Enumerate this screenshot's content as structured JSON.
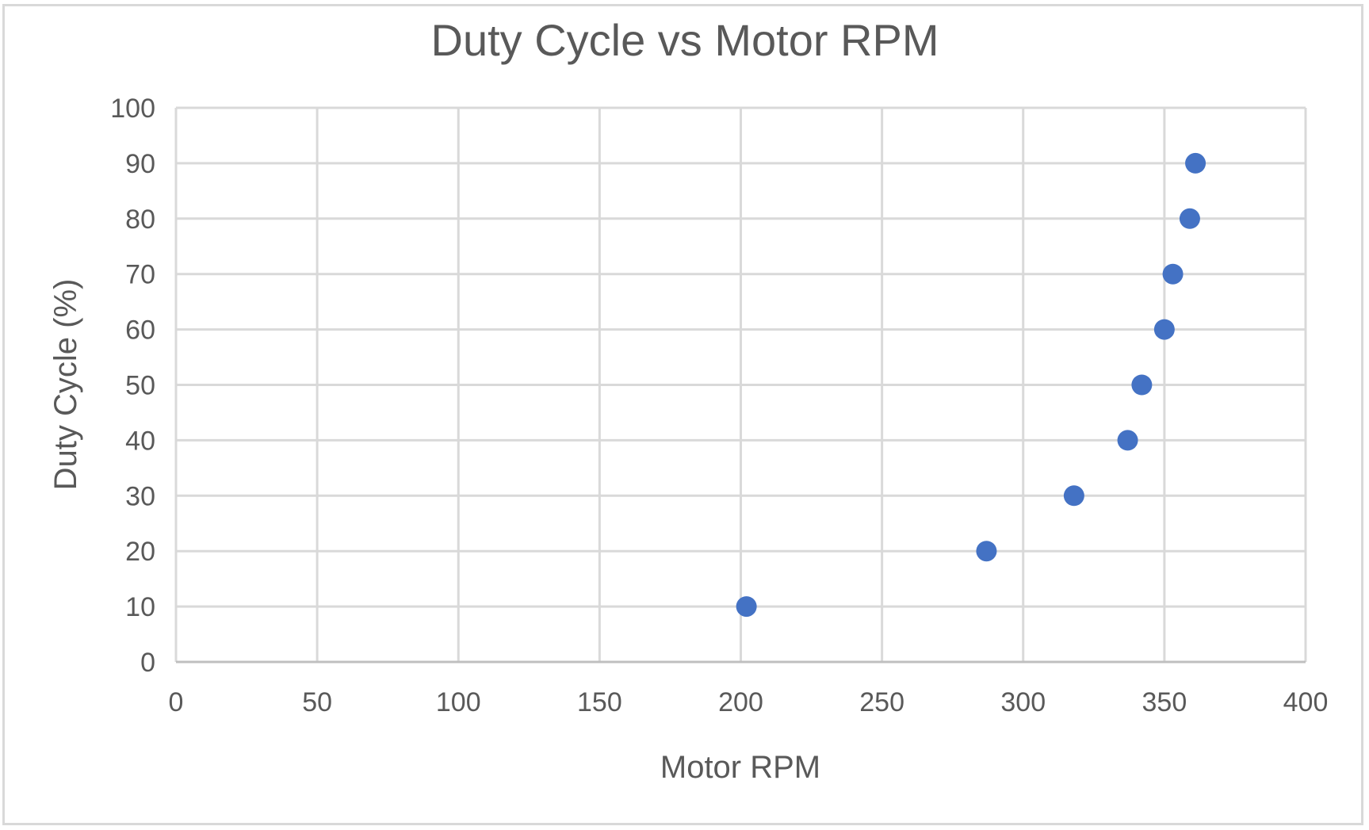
{
  "chart_data": {
    "type": "scatter",
    "title": "Duty Cycle vs Motor RPM",
    "xlabel": "Motor RPM",
    "ylabel": "Duty Cycle (%)",
    "xlim": [
      0,
      400
    ],
    "ylim": [
      0,
      100
    ],
    "x_ticks": [
      "0",
      "50",
      "100",
      "150",
      "200",
      "250",
      "300",
      "350",
      "400"
    ],
    "y_ticks": [
      "0",
      "10",
      "20",
      "30",
      "40",
      "50",
      "60",
      "70",
      "80",
      "90",
      "100"
    ],
    "grid": true,
    "marker_color": "#4472c4",
    "grid_color": "#d9d9d9",
    "text_color": "#595959",
    "points": [
      {
        "x": 202,
        "y": 10
      },
      {
        "x": 287,
        "y": 20
      },
      {
        "x": 318,
        "y": 30
      },
      {
        "x": 337,
        "y": 40
      },
      {
        "x": 342,
        "y": 50
      },
      {
        "x": 350,
        "y": 60
      },
      {
        "x": 353,
        "y": 70
      },
      {
        "x": 359,
        "y": 80
      },
      {
        "x": 361,
        "y": 90
      }
    ]
  }
}
